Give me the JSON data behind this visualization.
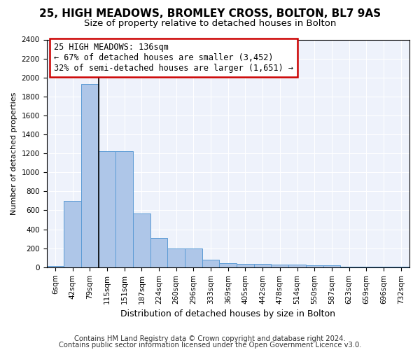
{
  "title1": "25, HIGH MEADOWS, BROMLEY CROSS, BOLTON, BL7 9AS",
  "title2": "Size of property relative to detached houses in Bolton",
  "xlabel": "Distribution of detached houses by size in Bolton",
  "ylabel": "Number of detached properties",
  "bar_values": [
    15,
    700,
    1930,
    1220,
    1220,
    570,
    305,
    200,
    200,
    80,
    45,
    35,
    35,
    30,
    30,
    20,
    20,
    5,
    5,
    5,
    5
  ],
  "bar_labels": [
    "6sqm",
    "42sqm",
    "79sqm",
    "115sqm",
    "151sqm",
    "187sqm",
    "224sqm",
    "260sqm",
    "296sqm",
    "333sqm",
    "369sqm",
    "405sqm",
    "442sqm",
    "478sqm",
    "514sqm",
    "550sqm",
    "587sqm",
    "623sqm",
    "659sqm",
    "696sqm",
    "732sqm"
  ],
  "bar_color": "#aec6e8",
  "bar_edge_color": "#5b9bd5",
  "annotation_line1": "25 HIGH MEADOWS: 136sqm",
  "annotation_line2": "← 67% of detached houses are smaller (3,452)",
  "annotation_line3": "32% of semi-detached houses are larger (1,651) →",
  "annotation_box_color": "#ffffff",
  "annotation_border_color": "#cc0000",
  "vline_x": 2.5,
  "ylim": [
    0,
    2400
  ],
  "yticks": [
    0,
    200,
    400,
    600,
    800,
    1000,
    1200,
    1400,
    1600,
    1800,
    2000,
    2200,
    2400
  ],
  "footer1": "Contains HM Land Registry data © Crown copyright and database right 2024.",
  "footer2": "Contains public sector information licensed under the Open Government Licence v3.0.",
  "bg_color": "#eef2fb",
  "title1_fontsize": 11,
  "title2_fontsize": 9.5,
  "annotation_fontsize": 8.5,
  "footer_fontsize": 7.2,
  "ylabel_fontsize": 8,
  "xlabel_fontsize": 9,
  "tick_fontsize": 7.5
}
